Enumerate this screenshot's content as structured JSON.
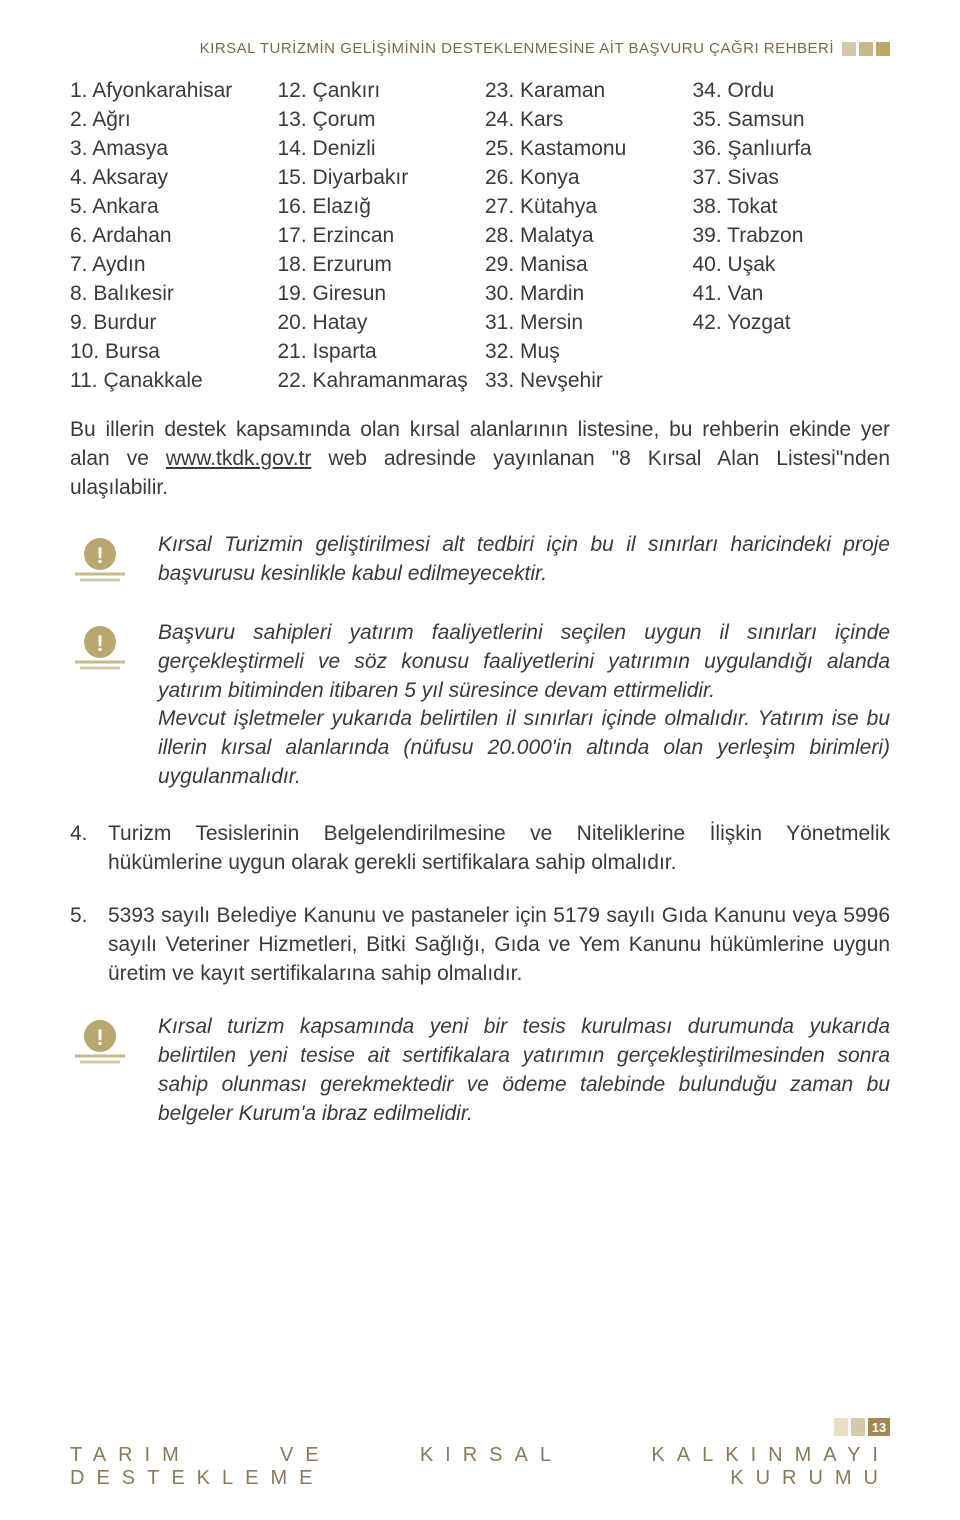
{
  "header": {
    "title": "KIRSAL TURİZMİN GELİŞİMİNİN DESTEKLENMESİNE AİT BAŞVURU ÇAĞRI REHBERİ"
  },
  "provinces": {
    "col1": [
      "1. Afyonkarahisar",
      "2. Ağrı",
      "3. Amasya",
      "4. Aksaray",
      "5. Ankara",
      "6. Ardahan",
      "7. Aydın",
      "8. Balıkesir",
      "9. Burdur",
      "10. Bursa",
      "11. Çanakkale"
    ],
    "col2": [
      "12. Çankırı",
      "13. Çorum",
      "14. Denizli",
      "15. Diyarbakır",
      "16. Elazığ",
      "17. Erzincan",
      "18. Erzurum",
      "19. Giresun",
      "20. Hatay",
      "21. Isparta",
      "22. Kahramanmaraş"
    ],
    "col3": [
      "23. Karaman",
      "24. Kars",
      "25. Kastamonu",
      "26. Konya",
      "27. Kütahya",
      "28. Malatya",
      "29. Manisa",
      "30. Mardin",
      "31. Mersin",
      "32. Muş",
      "33. Nevşehir"
    ],
    "col4": [
      "34. Ordu",
      "35. Samsun",
      "36. Şanlıurfa",
      "37. Sivas",
      "38. Tokat",
      "39. Trabzon",
      "40. Uşak",
      "41. Van",
      "42. Yozgat"
    ]
  },
  "para1_a": "Bu illerin destek kapsamında olan kırsal alanlarının listesine, bu rehberin ekinde yer alan ve ",
  "para1_link": "www.tkdk.gov.tr",
  "para1_b": " web adresinde yayınlanan \"8 Kırsal Alan Listesi\"nden ulaşılabilir.",
  "callout1": "Kırsal Turizmin geliştirilmesi alt tedbiri için bu il sınırları haricindeki proje başvurusu kesinlikle kabul edilmeyecektir.",
  "callout2_p1": "Başvuru sahipleri yatırım faaliyetlerini seçilen uygun il sınırları içinde gerçekleştirmeli ve söz konusu faaliyetlerini yatırımın uygulandığı alanda yatırım bitiminden itibaren 5 yıl süresince devam ettirmelidir.",
  "callout2_p2": "Mevcut işletmeler yukarıda belirtilen il sınırları içinde olmalıdır. Yatırım ise bu illerin kırsal alanlarında (nüfusu 20.000'in altında olan yerleşim birimleri) uygulanmalıdır.",
  "item4_num": "4.",
  "item4_txt": "Turizm Tesislerinin Belgelendirilmesine ve Niteliklerine İlişkin Yönetmelik hükümlerine uygun olarak gerekli sertifikalara sahip olmalıdır.",
  "item5_num": "5.",
  "item5_txt": "5393 sayılı Belediye Kanunu ve pastaneler için 5179 sayılı Gıda Kanunu veya 5996 sayılı Veteriner Hizmetleri, Bitki Sağlığı, Gıda ve Yem Kanunu hükümlerine uygun üretim ve kayıt sertifikalarına sahip olmalıdır.",
  "callout3": "Kırsal turizm kapsamında yeni bir  tesis kurulması durumunda yukarıda belirtilen yeni tesise ait sertifikalara yatırımın gerçekleştirilmesinden sonra sahip olunması gerekmektedir ve ödeme talebinde bulunduğu zaman bu belgeler Kurum'a ibraz edilmelidir.",
  "footer": {
    "page": "13",
    "line": "TARIM VE KIRSAL KALKINMAYI DESTEKLEME KURUMU"
  },
  "icon": {
    "circle_fill": "#b8a86f",
    "underline1": "#c9b98a",
    "underline2": "#d4c9a8"
  }
}
